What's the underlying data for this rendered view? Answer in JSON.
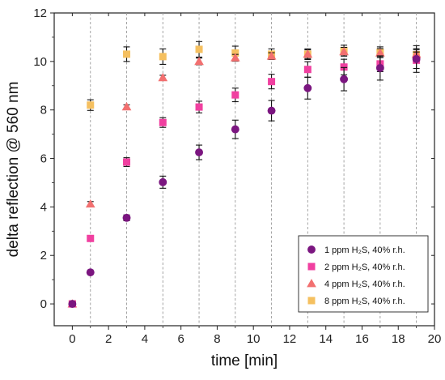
{
  "chart_data": {
    "type": "scatter",
    "xlabel": "time [min]",
    "ylabel": "delta reflection @ 560 nm",
    "xlim": [
      -1,
      20
    ],
    "ylim": [
      -0.9,
      12
    ],
    "xticks": [
      0,
      2,
      4,
      6,
      8,
      10,
      12,
      14,
      16,
      18,
      20
    ],
    "yticks": [
      0,
      2,
      4,
      6,
      8,
      10,
      12
    ],
    "vertical_dashed_lines_at": [
      1,
      3,
      5,
      7,
      9,
      11,
      13,
      15,
      17,
      19
    ],
    "legend_position": "bottom-right",
    "series": [
      {
        "name": "1 ppm H₂S, 40% r.h.",
        "marker": "circle",
        "color": "#7b1680",
        "x": [
          0,
          1,
          3,
          5,
          7,
          9,
          11,
          13,
          15,
          17,
          19
        ],
        "y": [
          0,
          1.3,
          3.55,
          5.02,
          6.25,
          7.2,
          7.97,
          8.9,
          9.27,
          9.73,
          10.1
        ],
        "err": [
          0.05,
          0.07,
          0.12,
          0.25,
          0.3,
          0.38,
          0.42,
          0.45,
          0.48,
          0.5,
          0.55
        ]
      },
      {
        "name": "2 ppm H₂S, 40% r.h.",
        "marker": "square",
        "color": "#f040a0",
        "x": [
          0,
          1,
          3,
          5,
          7,
          9,
          11,
          13,
          15,
          17,
          19
        ],
        "y": [
          0,
          2.7,
          5.85,
          7.48,
          8.12,
          8.62,
          9.17,
          9.67,
          9.77,
          9.9,
          10.05
        ],
        "err": [
          0.05,
          0.09,
          0.18,
          0.2,
          0.24,
          0.28,
          0.3,
          0.32,
          0.32,
          0.32,
          0.34
        ]
      },
      {
        "name": "4 ppm H₂S, 40% r.h.",
        "marker": "triangle",
        "color": "#f27070",
        "x": [
          0,
          1,
          3,
          5,
          7,
          9,
          11,
          13,
          15,
          17,
          19
        ],
        "y": [
          0,
          4.12,
          8.13,
          9.33,
          10.0,
          10.15,
          10.22,
          10.3,
          10.4,
          10.35,
          10.3
        ],
        "err": [
          0.05,
          0.1,
          0.08,
          0.1,
          0.14,
          0.14,
          0.14,
          0.18,
          0.18,
          0.18,
          0.18
        ]
      },
      {
        "name": "8 ppm H₂S, 40% r.h.",
        "marker": "square",
        "color": "#f5c060",
        "x": [
          0,
          1,
          3,
          5,
          7,
          9,
          11,
          13,
          15,
          17,
          19
        ],
        "y": [
          0,
          8.2,
          10.3,
          10.2,
          10.5,
          10.35,
          10.3,
          10.3,
          10.45,
          10.38,
          10.28
        ],
        "err": [
          0.05,
          0.22,
          0.3,
          0.32,
          0.32,
          0.28,
          0.22,
          0.22,
          0.22,
          0.22,
          0.25
        ]
      }
    ]
  }
}
